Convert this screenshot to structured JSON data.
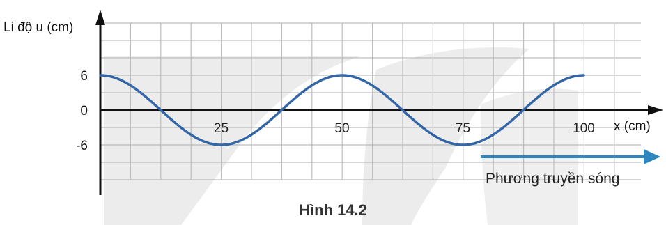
{
  "figure": {
    "caption": "Hình 14.2",
    "direction_label": "Phương truyền sóng"
  },
  "colors": {
    "wave": "#3366a6",
    "arrow": "#2f86bf",
    "grid": "#bdbdbd",
    "axis": "#111111",
    "watermark": "#ececec"
  },
  "chart_data": {
    "type": "line",
    "title": "",
    "xlabel": "x (cm)",
    "ylabel": "Li độ u (cm)",
    "xlim": [
      0,
      100
    ],
    "ylim": [
      -6,
      6
    ],
    "x_ticks": [
      {
        "value": 25,
        "label": "25"
      },
      {
        "value": 50,
        "label": "50"
      },
      {
        "value": 75,
        "label": "75"
      },
      {
        "value": 100,
        "label": "100"
      }
    ],
    "y_ticks": [
      {
        "value": 6,
        "label": "6"
      },
      {
        "value": 0,
        "label": "0"
      },
      {
        "value": -6,
        "label": "-6"
      }
    ],
    "grid": true,
    "series": [
      {
        "function": "u = 6·cos(2πx/50)",
        "amplitude": 6,
        "wavelength": 50,
        "x": [
          0,
          25,
          50,
          75,
          100
        ],
        "y": [
          6,
          -6,
          6,
          -6,
          6
        ]
      }
    ]
  }
}
